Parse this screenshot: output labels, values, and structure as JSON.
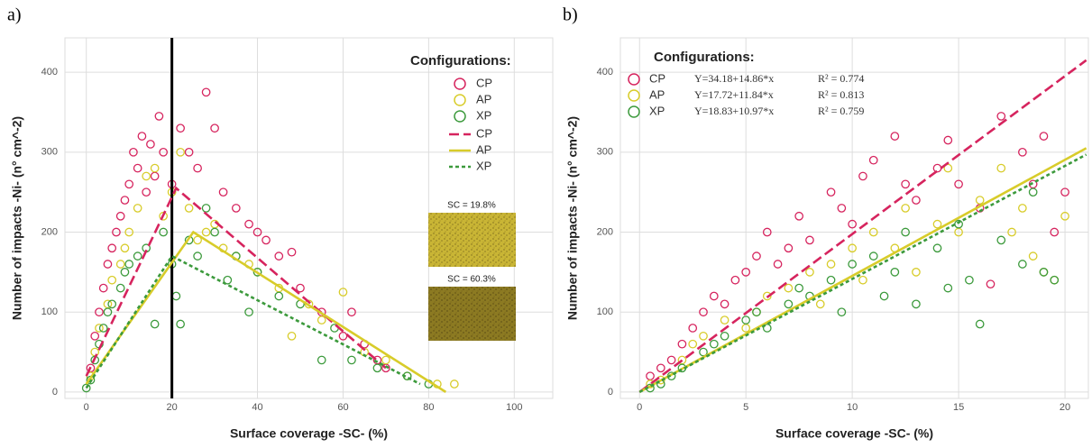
{
  "chart_data": [
    {
      "type": "scatter",
      "panel_label": "a)",
      "x_label": "Surface coverage -SC- (%)",
      "y_label": "Number of impacts -Ni- (n° cm^-2)",
      "legend_title": "Configurations:",
      "grid": true,
      "vline": 20,
      "xlim": [
        -5,
        109
      ],
      "ylim": [
        -8,
        443
      ],
      "xticks": [
        0,
        20,
        40,
        60,
        80,
        100
      ],
      "yticks": [
        0,
        100,
        200,
        300,
        400
      ],
      "series": [
        {
          "name": "CP",
          "color": "#d6245e",
          "x": [
            1,
            2,
            3,
            4,
            5,
            6,
            7,
            8,
            9,
            10,
            11,
            12,
            13,
            14,
            15,
            16,
            17,
            18,
            20,
            22,
            24,
            26,
            28,
            30,
            32,
            35,
            38,
            40,
            42,
            45,
            48,
            50,
            55,
            60,
            62,
            65,
            68,
            70
          ],
          "values": [
            30,
            70,
            100,
            130,
            160,
            180,
            200,
            220,
            240,
            260,
            300,
            280,
            320,
            250,
            310,
            270,
            345,
            300,
            260,
            330,
            300,
            280,
            375,
            330,
            250,
            230,
            210,
            200,
            190,
            170,
            175,
            130,
            100,
            70,
            100,
            60,
            40,
            30
          ]
        },
        {
          "name": "AP",
          "color": "#d8cc2a",
          "x": [
            1,
            2,
            3,
            5,
            6,
            8,
            9,
            10,
            12,
            14,
            16,
            18,
            20,
            22,
            24,
            26,
            28,
            30,
            32,
            35,
            38,
            40,
            45,
            48,
            52,
            55,
            60,
            65,
            70,
            75,
            82,
            86
          ],
          "values": [
            20,
            50,
            80,
            110,
            140,
            160,
            180,
            200,
            230,
            270,
            280,
            220,
            250,
            300,
            230,
            190,
            200,
            210,
            180,
            170,
            160,
            150,
            130,
            70,
            110,
            90,
            125,
            50,
            40,
            20,
            10,
            10
          ]
        },
        {
          "name": "XP",
          "color": "#3c9a3c",
          "x": [
            0,
            1,
            2,
            3,
            4,
            5,
            6,
            8,
            9,
            10,
            12,
            14,
            16,
            18,
            20,
            21,
            22,
            24,
            26,
            28,
            30,
            33,
            35,
            38,
            40,
            45,
            50,
            55,
            58,
            62,
            68,
            75,
            80
          ],
          "values": [
            5,
            15,
            40,
            60,
            80,
            100,
            110,
            130,
            150,
            160,
            170,
            180,
            85,
            200,
            160,
            120,
            85,
            190,
            170,
            230,
            200,
            140,
            170,
            100,
            150,
            120,
            110,
            40,
            80,
            40,
            30,
            20,
            10
          ]
        }
      ],
      "lines": [
        {
          "name": "CP",
          "color": "#d6245e",
          "dash": "dashed",
          "x": [
            0,
            21,
            70
          ],
          "values": [
            20,
            255,
            30
          ]
        },
        {
          "name": "AP",
          "color": "#d8cc2a",
          "dash": "solid",
          "x": [
            0,
            25,
            84
          ],
          "values": [
            10,
            200,
            0
          ]
        },
        {
          "name": "XP",
          "color": "#3c9a3c",
          "dash": "dotted",
          "x": [
            0,
            20,
            78
          ],
          "values": [
            5,
            170,
            10
          ]
        }
      ],
      "insets": [
        {
          "label": "SC = 19.8%"
        },
        {
          "label": "SC = 60.3%"
        }
      ]
    },
    {
      "type": "scatter",
      "panel_label": "b)",
      "x_label": "Surface coverage -SC- (%)",
      "y_label": "Number of impacts -Ni- (n° cm^-2)",
      "legend_title": "Configurations:",
      "grid": true,
      "xlim": [
        -0.9,
        21.1
      ],
      "ylim": [
        -8,
        443
      ],
      "xticks": [
        0,
        5,
        10,
        15,
        20
      ],
      "yticks": [
        0,
        100,
        200,
        300,
        400
      ],
      "series": [
        {
          "name": "CP",
          "color": "#d6245e",
          "equation": "Y=34.18+14.86*x",
          "r2": "R² = 0.774",
          "x": [
            0.5,
            1,
            1.5,
            2,
            2.5,
            3,
            3.5,
            4,
            4.5,
            5,
            5.5,
            6,
            6.5,
            7,
            7.5,
            8,
            9,
            9.5,
            10,
            10.5,
            11,
            12,
            12.5,
            13,
            14,
            14.5,
            15,
            16,
            16.5,
            17,
            18,
            18.5,
            19,
            19.5,
            20
          ],
          "values": [
            20,
            30,
            40,
            60,
            80,
            100,
            120,
            110,
            140,
            150,
            170,
            200,
            160,
            180,
            220,
            190,
            250,
            230,
            210,
            270,
            290,
            320,
            260,
            240,
            280,
            315,
            260,
            230,
            135,
            345,
            300,
            260,
            320,
            200,
            250
          ]
        },
        {
          "name": "AP",
          "color": "#d8cc2a",
          "equation": "Y=17.72+11.84*x",
          "r2": "R² = 0.813",
          "x": [
            0.5,
            1,
            2,
            2.5,
            3,
            4,
            5,
            5.5,
            6,
            7,
            8,
            8.5,
            9,
            10,
            10.5,
            11,
            12,
            12.5,
            13,
            14,
            14.5,
            15,
            16,
            17,
            17.5,
            18,
            18.5,
            19,
            19.5,
            20
          ],
          "values": [
            10,
            15,
            40,
            60,
            70,
            90,
            80,
            100,
            120,
            130,
            150,
            110,
            160,
            180,
            140,
            200,
            180,
            230,
            150,
            210,
            280,
            200,
            240,
            280,
            200,
            230,
            170,
            150,
            140,
            220
          ]
        },
        {
          "name": "XP",
          "color": "#3c9a3c",
          "equation": "Y=18.83+10.97*x",
          "r2": "R² = 0.759",
          "x": [
            0.5,
            1,
            1.5,
            2,
            3,
            3.5,
            4,
            5,
            5.5,
            6,
            7,
            7.5,
            8,
            9,
            9.5,
            10,
            11,
            11.5,
            12,
            12.5,
            13,
            14,
            14.5,
            15,
            15.5,
            16,
            17,
            18,
            18.5,
            19,
            19.5
          ],
          "values": [
            5,
            10,
            20,
            30,
            50,
            60,
            70,
            90,
            100,
            80,
            110,
            130,
            120,
            140,
            100,
            160,
            170,
            120,
            150,
            200,
            110,
            180,
            130,
            210,
            140,
            85,
            190,
            160,
            250,
            150,
            140
          ]
        }
      ],
      "lines": [
        {
          "name": "CP",
          "color": "#d6245e",
          "dash": "dashed",
          "x": [
            0,
            21
          ],
          "values": [
            0,
            415
          ]
        },
        {
          "name": "AP",
          "color": "#d8cc2a",
          "dash": "solid",
          "x": [
            0,
            21
          ],
          "values": [
            0,
            305
          ]
        },
        {
          "name": "XP",
          "color": "#3c9a3c",
          "dash": "dotted",
          "x": [
            0,
            21
          ],
          "values": [
            0,
            297
          ]
        }
      ]
    }
  ]
}
